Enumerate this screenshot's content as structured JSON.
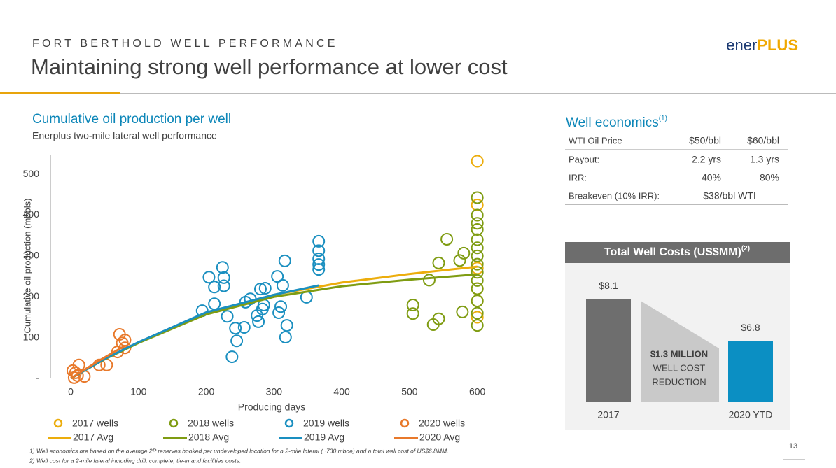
{
  "header": {
    "kicker": "FORT BERTHOLD WELL PERFORMANCE",
    "title": "Maintaining strong well performance at lower cost",
    "logo": [
      "ener",
      "PLUS"
    ]
  },
  "chart_data": [
    {
      "type": "scatter",
      "title": "Cumulative oil production per well",
      "subtitle": "Enerplus two-mile lateral well performance",
      "x_label": "Producing days",
      "y_label": "Cumulative oil production (mbbls)",
      "xlim": [
        -30,
        620
      ],
      "ylim": [
        0,
        550
      ],
      "xticks": [
        0,
        100,
        200,
        300,
        400,
        500,
        600
      ],
      "yticks": [
        {
          "value": 0,
          "label": "-"
        },
        100,
        200,
        300,
        400,
        500
      ],
      "legend": "bottom",
      "series": [
        {
          "name": "2017 wells",
          "color": "#ecad0c",
          "x": [
            600,
            600,
            600,
            600,
            600,
            600
          ],
          "values": [
            532,
            425,
            270,
            220,
            150,
            190
          ]
        },
        {
          "name": "2018 wells",
          "color": "#7f9c12",
          "x": [
            529,
            543,
            555,
            505,
            505,
            535,
            543,
            578,
            580,
            574,
            600,
            600,
            600,
            600,
            600,
            600,
            600,
            600,
            600,
            600,
            600,
            600,
            600,
            600
          ],
          "values": [
            241,
            283,
            341,
            180,
            159,
            132,
            146,
            163,
            307,
            289,
            443,
            400,
            380,
            365,
            340,
            320,
            300,
            280,
            260,
            240,
            220,
            190,
            160,
            130
          ]
        },
        {
          "name": "2019 wells",
          "color": "#1a8fc0",
          "x": [
            204,
            212,
            194,
            212,
            224,
            226,
            226,
            231,
            238,
            245,
            243,
            256,
            258,
            265,
            275,
            277,
            280,
            287,
            285,
            283,
            305,
            310,
            313,
            316,
            317,
            319,
            307,
            348,
            366,
            366,
            366,
            366,
            366
          ],
          "values": [
            248,
            224,
            166,
            183,
            272,
            247,
            227,
            152,
            53,
            92,
            123,
            125,
            187,
            195,
            154,
            139,
            219,
            221,
            180,
            170,
            250,
            176,
            228,
            288,
            101,
            130,
            161,
            199,
            336,
            313,
            293,
            267,
            279
          ]
        },
        {
          "name": "2020 wells",
          "color": "#e8792b",
          "x": [
            7,
            12,
            10,
            3,
            20,
            42,
            53,
            69,
            72,
            76,
            80,
            80,
            5
          ],
          "values": [
            14,
            33,
            7,
            19,
            5,
            33,
            33,
            65,
            108,
            87,
            75,
            94,
            2
          ]
        },
        {
          "name": "2017 Avg",
          "color": "#ecad0c",
          "line": true,
          "x": [
            0,
            50,
            100,
            200,
            300,
            400,
            500,
            600
          ],
          "values": [
            0,
            48,
            88,
            160,
            205,
            235,
            256,
            274
          ]
        },
        {
          "name": "2018 Avg",
          "color": "#7f9c12",
          "line": true,
          "x": [
            0,
            50,
            100,
            200,
            300,
            400,
            500,
            600
          ],
          "values": [
            0,
            47,
            87,
            157,
            200,
            226,
            242,
            255
          ]
        },
        {
          "name": "2019 Avg",
          "color": "#1a8fc0",
          "line": true,
          "x": [
            0,
            50,
            100,
            200,
            300,
            366
          ],
          "values": [
            0,
            48,
            89,
            162,
            205,
            228
          ]
        },
        {
          "name": "2020 Avg",
          "color": "#e8792b",
          "line": true,
          "x": [
            0,
            40,
            80
          ],
          "values": [
            0,
            42,
            80
          ]
        }
      ]
    },
    {
      "type": "bar",
      "title": "Total Well Costs (US$MM)",
      "title_note": "(2)",
      "categories": [
        "2017",
        "2020 YTD"
      ],
      "values": [
        8.1,
        6.8
      ],
      "value_labels": [
        "$8.1",
        "$6.8"
      ],
      "colors": [
        "#6e6e6e",
        "#0b8fc3"
      ],
      "ylim": [
        4.9,
        9.0
      ],
      "annotation": [
        "$1.3 MILLION",
        "WELL COST",
        "REDUCTION"
      ]
    }
  ],
  "table": {
    "title": "Well economics",
    "title_note": "(1)",
    "rows": [
      [
        "WTI Oil Price",
        "$50/bbl",
        "$60/bbl"
      ],
      [
        "Payout:",
        "2.2 yrs",
        "1.3 yrs"
      ],
      [
        "IRR:",
        "40%",
        "80%"
      ],
      [
        "Breakeven (10% IRR):",
        "$38/bbl WTI"
      ]
    ]
  },
  "footnotes": [
    "1)  Well economics are based on the average 2P reserves booked per undeveloped location for a 2-mile lateral (~730 mboe) and a total well cost of US$6.8MM.",
    "2)  Well cost for a 2-mile lateral including drill, complete, tie-in and facilities costs."
  ],
  "page_number": "13"
}
